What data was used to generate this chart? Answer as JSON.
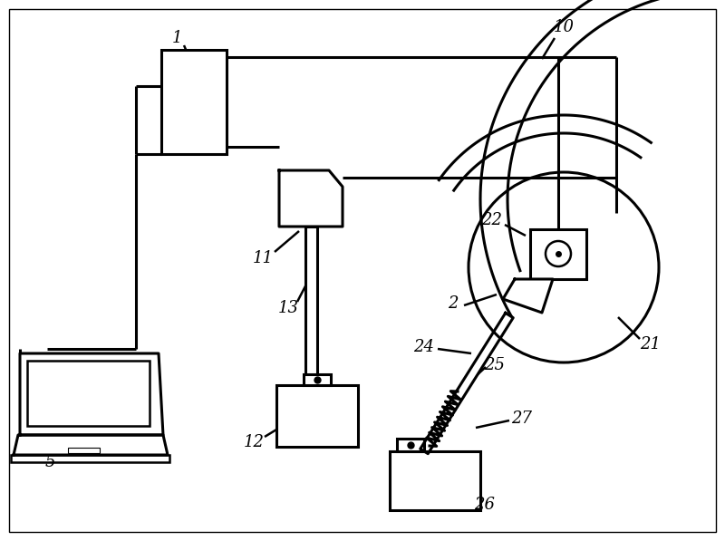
{
  "bg_color": "#ffffff",
  "line_color": "#000000",
  "lw": 1.8,
  "lw2": 2.2,
  "figsize": [
    8.0,
    5.97
  ],
  "dpi": 100,
  "label_fs": 13
}
